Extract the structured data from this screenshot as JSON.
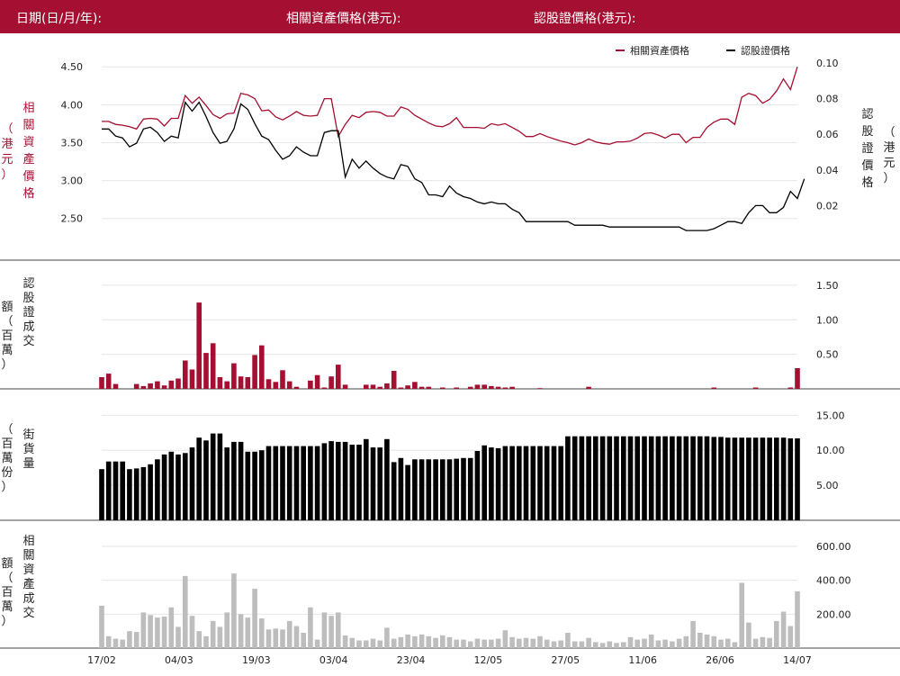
{
  "header": {
    "date_label": "日期(日/月/年):",
    "underlying_label": "相關資產價格(港元):",
    "warrant_label": "認股證價格(港元):"
  },
  "colors": {
    "header_bg": "#a50f31",
    "underlying": "#a50f31",
    "warrant": "#000000",
    "outstanding": "#000000",
    "turnover": "#bdbdbd"
  },
  "chart_data": [
    {
      "type": "line",
      "name": "price",
      "legend": [
        "相關資產價格",
        "認股證價格"
      ],
      "left_axis_label": "相關資產價格（港元）",
      "right_axis_label": "認股證價格（港元）",
      "left_ticks": [
        "4.50",
        "4.00",
        "3.50",
        "3.00",
        "2.50"
      ],
      "right_ticks": [
        "0.10",
        "0.08",
        "0.06",
        "0.04",
        "0.02"
      ],
      "left_ylim": [
        2.2,
        4.55
      ],
      "right_ylim": [
        0.0,
        0.1
      ],
      "series": [
        {
          "name": "相關資產價格",
          "axis": "left",
          "values": [
            3.78,
            3.78,
            3.74,
            3.73,
            3.71,
            3.68,
            3.81,
            3.82,
            3.81,
            3.72,
            3.82,
            3.82,
            4.12,
            4.02,
            4.1,
            3.99,
            3.87,
            3.82,
            3.88,
            3.89,
            4.15,
            4.13,
            4.08,
            3.92,
            3.93,
            3.84,
            3.8,
            3.85,
            3.91,
            3.86,
            3.85,
            3.86,
            4.08,
            4.08,
            3.58,
            3.74,
            3.86,
            3.83,
            3.9,
            3.91,
            3.9,
            3.85,
            3.85,
            3.97,
            3.94,
            3.86,
            3.81,
            3.76,
            3.72,
            3.71,
            3.75,
            3.83,
            3.7,
            3.7,
            3.7,
            3.69,
            3.75,
            3.73,
            3.75,
            3.7,
            3.65,
            3.58,
            3.58,
            3.62,
            3.58,
            3.55,
            3.52,
            3.5,
            3.47,
            3.5,
            3.55,
            3.51,
            3.49,
            3.48,
            3.51,
            3.51,
            3.52,
            3.56,
            3.62,
            3.63,
            3.6,
            3.56,
            3.61,
            3.61,
            3.5,
            3.57,
            3.57,
            3.7,
            3.77,
            3.81,
            3.81,
            3.74,
            4.1,
            4.15,
            4.12,
            4.02,
            4.07,
            4.18,
            4.34,
            4.2,
            4.5
          ]
        },
        {
          "name": "認股證價格",
          "axis": "right",
          "values": [
            0.063,
            0.063,
            0.059,
            0.058,
            0.053,
            0.055,
            0.063,
            0.064,
            0.061,
            0.056,
            0.059,
            0.058,
            0.078,
            0.073,
            0.078,
            0.07,
            0.061,
            0.055,
            0.056,
            0.063,
            0.077,
            0.074,
            0.066,
            0.059,
            0.057,
            0.051,
            0.046,
            0.048,
            0.053,
            0.05,
            0.048,
            0.048,
            0.061,
            0.062,
            0.062,
            0.036,
            0.046,
            0.041,
            0.045,
            0.041,
            0.038,
            0.036,
            0.035,
            0.043,
            0.042,
            0.035,
            0.033,
            0.026,
            0.026,
            0.025,
            0.031,
            0.027,
            0.025,
            0.024,
            0.022,
            0.021,
            0.022,
            0.021,
            0.021,
            0.018,
            0.016,
            0.011,
            0.011,
            0.011,
            0.011,
            0.011,
            0.011,
            0.011,
            0.009,
            0.009,
            0.009,
            0.009,
            0.009,
            0.008,
            0.008,
            0.008,
            0.008,
            0.008,
            0.008,
            0.008,
            0.008,
            0.008,
            0.008,
            0.008,
            0.006,
            0.006,
            0.006,
            0.006,
            0.007,
            0.009,
            0.011,
            0.011,
            0.01,
            0.016,
            0.02,
            0.02,
            0.016,
            0.016,
            0.019,
            0.028,
            0.024,
            0.035
          ]
        }
      ]
    },
    {
      "type": "bar",
      "name": "warrant_turnover",
      "ylabel": "認股證成交額（百萬）",
      "ticks": [
        "1.50",
        "1.00",
        "0.50"
      ],
      "ylim": [
        0,
        1.72
      ],
      "values": [
        0.17,
        0.22,
        0.07,
        0,
        0,
        0.07,
        0.04,
        0.08,
        0.11,
        0.05,
        0.12,
        0.15,
        0.41,
        0.28,
        1.25,
        0.52,
        0.66,
        0.17,
        0.11,
        0.37,
        0.18,
        0.17,
        0.49,
        0.63,
        0.14,
        0.1,
        0.27,
        0.11,
        0.03,
        0,
        0.12,
        0.2,
        0.02,
        0.18,
        0.35,
        0.06,
        0,
        0,
        0.06,
        0.06,
        0.03,
        0.08,
        0.26,
        0.02,
        0.05,
        0.1,
        0.03,
        0.03,
        0,
        0.02,
        0,
        0.02,
        0,
        0.03,
        0.06,
        0.06,
        0.04,
        0.03,
        0.02,
        0.03,
        0,
        0,
        0,
        0.01,
        0,
        0,
        0,
        0,
        0,
        0,
        0.03,
        0,
        0,
        0,
        0,
        0,
        0,
        0,
        0,
        0,
        0,
        0,
        0,
        0,
        0,
        0,
        0,
        0,
        0.02,
        0,
        0,
        0,
        0,
        0,
        0.02,
        0,
        0,
        0,
        0,
        0.02,
        0.3
      ]
    },
    {
      "type": "bar",
      "name": "outstanding",
      "ylabel": "街貨量（百萬份）",
      "ticks": [
        "15.00",
        "10.00",
        "5.00"
      ],
      "ylim": [
        0,
        17.1
      ],
      "values": [
        7.3,
        8.4,
        8.4,
        8.4,
        7.3,
        7.4,
        7.6,
        8.0,
        8.7,
        9.4,
        9.8,
        9.4,
        9.6,
        10.4,
        11.8,
        11.4,
        12.4,
        12.4,
        10.4,
        11.2,
        11.2,
        9.8,
        9.8,
        10.0,
        10.6,
        10.6,
        10.6,
        10.6,
        10.6,
        10.6,
        10.6,
        10.6,
        11.0,
        11.3,
        11.2,
        11.2,
        10.8,
        10.8,
        11.6,
        10.4,
        10.4,
        11.6,
        8.3,
        8.9,
        7.9,
        8.7,
        8.7,
        8.7,
        8.7,
        8.7,
        8.7,
        8.8,
        8.9,
        8.9,
        9.9,
        10.7,
        10.4,
        10.3,
        10.6,
        10.6,
        10.6,
        10.6,
        10.6,
        10.6,
        10.6,
        10.6,
        10.6,
        12.0,
        12.0,
        12.0,
        12.0,
        12.0,
        12.0,
        12.0,
        12.0,
        12.0,
        12.0,
        12.0,
        12.0,
        12.0,
        12.0,
        12.0,
        12.0,
        12.0,
        12.0,
        12.0,
        12.0,
        12.0,
        11.9,
        11.9,
        11.8,
        11.8,
        11.8,
        11.8,
        11.8,
        11.8,
        11.8,
        11.8,
        11.8,
        11.7,
        11.7
      ]
    },
    {
      "type": "bar",
      "name": "underlying_turnover",
      "ylabel": "相關資產成交額（百萬）",
      "ticks": [
        "600.00",
        "400.00",
        "200.00"
      ],
      "ylim": [
        0,
        690
      ],
      "x_ticks": [
        "17/02",
        "04/03",
        "19/03",
        "03/04",
        "23/04",
        "12/05",
        "27/05",
        "11/06",
        "26/06",
        "14/07"
      ],
      "values": [
        250,
        70,
        55,
        50,
        100,
        95,
        210,
        195,
        180,
        185,
        240,
        125,
        425,
        190,
        100,
        70,
        160,
        125,
        210,
        440,
        200,
        180,
        350,
        175,
        110,
        115,
        110,
        160,
        130,
        90,
        240,
        50,
        210,
        190,
        210,
        75,
        60,
        45,
        45,
        55,
        45,
        120,
        55,
        65,
        80,
        70,
        80,
        70,
        60,
        75,
        65,
        50,
        50,
        40,
        55,
        50,
        50,
        55,
        105,
        65,
        55,
        60,
        55,
        70,
        50,
        40,
        45,
        90,
        40,
        40,
        60,
        35,
        30,
        40,
        30,
        35,
        65,
        50,
        55,
        80,
        45,
        50,
        40,
        55,
        70,
        160,
        90,
        80,
        70,
        50,
        55,
        35,
        385,
        150,
        55,
        65,
        60,
        160,
        215,
        130,
        335
      ]
    }
  ]
}
